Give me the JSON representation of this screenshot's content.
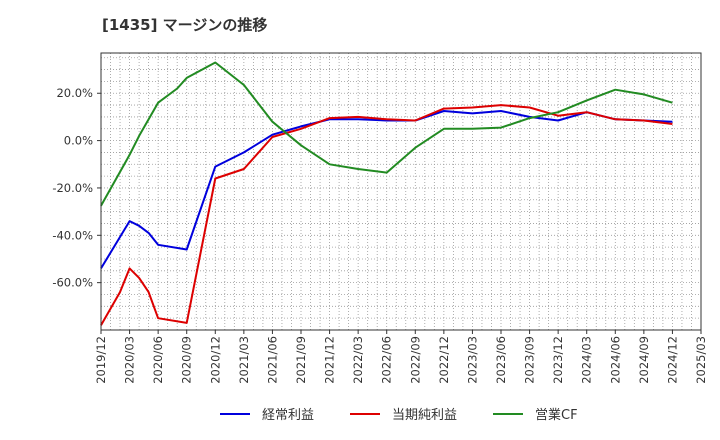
{
  "chart_data": {
    "type": "line",
    "title": "[1435]  マージンの推移",
    "xlabel": "",
    "ylabel": "",
    "x": [
      "2019/12",
      "2020/03",
      "2020/06",
      "2020/09",
      "2020/12",
      "2021/03",
      "2021/06",
      "2021/09",
      "2021/12",
      "2022/03",
      "2022/06",
      "2022/09",
      "2022/12",
      "2023/03",
      "2023/06",
      "2023/09",
      "2023/12",
      "2024/03",
      "2024/06",
      "2024/09",
      "2024/12"
    ],
    "x_ticks": [
      "2019/12",
      "2020/03",
      "2020/06",
      "2020/09",
      "2020/12",
      "2021/03",
      "2021/06",
      "2021/09",
      "2021/12",
      "2022/03",
      "2022/06",
      "2022/09",
      "2022/12",
      "2023/03",
      "2023/06",
      "2023/09",
      "2023/12",
      "2024/03",
      "2024/06",
      "2024/09",
      "2024/12",
      "2025/03"
    ],
    "y_ticks": [
      20,
      0,
      -20,
      -40,
      -60
    ],
    "y_tick_labels": [
      "20.0%",
      "0.0%",
      "-20.0%",
      "-40.0%",
      "-60.0%"
    ],
    "ylim": [
      -80,
      37
    ],
    "grid": true,
    "legend_position": "bottom",
    "series": [
      {
        "name": "経常利益",
        "color": "#0000dd",
        "points": [
          [
            "2019/12",
            -54
          ],
          [
            "2020/03",
            -34
          ],
          [
            "2020/04",
            -36
          ],
          [
            "2020/05",
            -39
          ],
          [
            "2020/06",
            -44
          ],
          [
            "2020/09",
            -46
          ],
          [
            "2020/12",
            -11
          ],
          [
            "2021/03",
            -5
          ],
          [
            "2021/06",
            2.5
          ],
          [
            "2021/09",
            6
          ],
          [
            "2021/12",
            9
          ],
          [
            "2022/03",
            9
          ],
          [
            "2022/06",
            8.5
          ],
          [
            "2022/09",
            8.5
          ],
          [
            "2022/12",
            12.5
          ],
          [
            "2023/03",
            11.5
          ],
          [
            "2023/06",
            12.5
          ],
          [
            "2023/09",
            10
          ],
          [
            "2023/12",
            8.5
          ],
          [
            "2024/03",
            12
          ],
          [
            "2024/06",
            9
          ],
          [
            "2024/09",
            8.5
          ],
          [
            "2024/12",
            8
          ]
        ]
      },
      {
        "name": "当期純利益",
        "color": "#dd0000",
        "points": [
          [
            "2019/12",
            -78
          ],
          [
            "2020/02",
            -64
          ],
          [
            "2020/03",
            -54
          ],
          [
            "2020/04",
            -58
          ],
          [
            "2020/05",
            -64
          ],
          [
            "2020/06",
            -75
          ],
          [
            "2020/09",
            -77
          ],
          [
            "2020/12",
            -16
          ],
          [
            "2021/03",
            -12
          ],
          [
            "2021/06",
            1.5
          ],
          [
            "2021/09",
            5
          ],
          [
            "2021/12",
            9.5
          ],
          [
            "2022/03",
            10
          ],
          [
            "2022/06",
            9
          ],
          [
            "2022/09",
            8.5
          ],
          [
            "2022/12",
            13.5
          ],
          [
            "2023/03",
            14
          ],
          [
            "2023/06",
            15
          ],
          [
            "2023/09",
            14
          ],
          [
            "2023/12",
            10.5
          ],
          [
            "2024/03",
            12
          ],
          [
            "2024/06",
            9
          ],
          [
            "2024/09",
            8.5
          ],
          [
            "2024/12",
            7
          ]
        ]
      },
      {
        "name": "営業CF",
        "color": "#228b22",
        "points": [
          [
            "2019/12",
            -27.5
          ],
          [
            "2020/03",
            -6
          ],
          [
            "2020/04",
            2
          ],
          [
            "2020/06",
            16
          ],
          [
            "2020/08",
            22
          ],
          [
            "2020/09",
            26.5
          ],
          [
            "2020/12",
            33
          ],
          [
            "2021/03",
            23.5
          ],
          [
            "2021/06",
            8
          ],
          [
            "2021/09",
            -2
          ],
          [
            "2021/12",
            -10
          ],
          [
            "2022/03",
            -12
          ],
          [
            "2022/06",
            -13.5
          ],
          [
            "2022/09",
            -3
          ],
          [
            "2022/12",
            5
          ],
          [
            "2023/03",
            5
          ],
          [
            "2023/06",
            5.5
          ],
          [
            "2023/09",
            9.5
          ],
          [
            "2023/12",
            12
          ],
          [
            "2024/03",
            17
          ],
          [
            "2024/06",
            21.5
          ],
          [
            "2024/09",
            19.5
          ],
          [
            "2024/12",
            16
          ]
        ]
      }
    ]
  }
}
